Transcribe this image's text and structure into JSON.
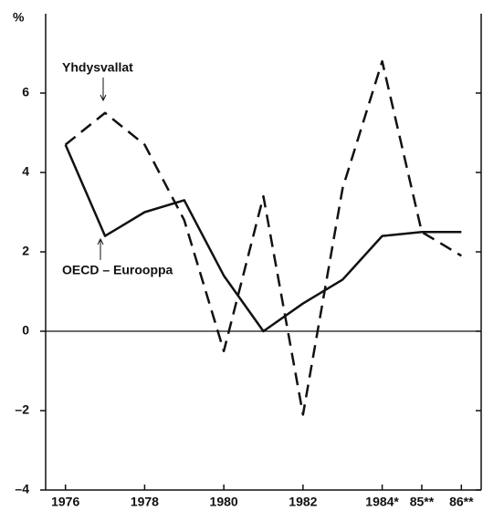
{
  "chart_data": {
    "type": "line",
    "y_label": "%",
    "x": [
      1976,
      1977,
      1978,
      1979,
      1980,
      1981,
      1982,
      1983,
      1984,
      1985,
      1986
    ],
    "series": [
      {
        "name": "Yhdysvallat",
        "color": "#111111",
        "dash": true,
        "values": [
          4.7,
          5.5,
          4.7,
          2.8,
          -0.5,
          3.4,
          -2.1,
          3.6,
          6.8,
          2.5,
          1.9
        ]
      },
      {
        "name": "OECD – Eurooppa",
        "color": "#111111",
        "dash": false,
        "values": [
          4.7,
          2.4,
          3.0,
          3.3,
          1.4,
          0.0,
          0.7,
          1.3,
          2.4,
          2.5,
          2.5
        ]
      }
    ],
    "xlim": [
      1975.5,
      1986.5
    ],
    "xticks": [
      1976,
      1978,
      1980,
      1982,
      {
        "value": 1984,
        "label": "1984*"
      },
      {
        "value": 1985,
        "label": "85**"
      },
      {
        "value": 1986,
        "label": "86**"
      }
    ],
    "ylim": [
      -4,
      8
    ],
    "yticks": [
      {
        "value": -4,
        "label": "–4"
      },
      {
        "value": -2,
        "label": "–2"
      },
      0,
      2,
      4,
      6
    ],
    "zero_line": true
  }
}
